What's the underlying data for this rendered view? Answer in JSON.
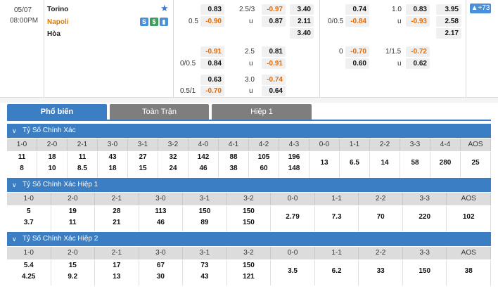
{
  "match": {
    "date": "05/07",
    "time": "08:00PM",
    "home": "Torino",
    "away": "Napoli",
    "draw": "Hòa",
    "more": "+73"
  },
  "icons": [
    "stats-s-icon",
    "money-icon",
    "chart-icon",
    "star-icon"
  ],
  "odds_ft": {
    "row1": {
      "hdp_home": "0.83",
      "line": "2.5/3",
      "hdp_away": "-0.97",
      "x12": "3.40"
    },
    "row2": {
      "line": "0.5",
      "hdp_home": "-0.90",
      "u": "u",
      "ou": "0.87",
      "x12": "2.11"
    },
    "row3": {
      "x12": "3.40"
    },
    "row4": {
      "hdp_home": "-0.91",
      "line": "2.5",
      "ou": "0.81"
    },
    "row5": {
      "line": "0/0.5",
      "hdp_home": "0.84",
      "u": "u",
      "ou": "-0.91"
    },
    "row6": {
      "hdp_home": "0.63",
      "line": "3.0",
      "ou": "-0.74"
    },
    "row7": {
      "line": "0.5/1",
      "hdp_home": "-0.70",
      "u": "u",
      "ou": "0.64"
    }
  },
  "odds_h1": {
    "row1": {
      "hdp_home": "0.74",
      "line": "1.0",
      "ou": "0.83",
      "x12": "3.95"
    },
    "row2": {
      "line": "0/0.5",
      "hdp_home": "-0.84",
      "u": "u",
      "ou": "-0.93",
      "x12": "2.58"
    },
    "row3": {
      "x12": "2.17"
    },
    "row4": {
      "line0": "0",
      "hdp_home": "-0.70",
      "line": "1/1.5",
      "ou": "-0.72"
    },
    "row5": {
      "hdp_home": "0.60",
      "u": "u",
      "ou": "0.62"
    }
  },
  "tabs": [
    {
      "label": "Phổ biến"
    },
    {
      "label": "Toàn Trận"
    },
    {
      "label": "Hiệp 1"
    }
  ],
  "sections": [
    {
      "title": "Tỷ Số Chính Xác",
      "scores": [
        "1-0",
        "2-0",
        "2-1",
        "3-0",
        "3-1",
        "3-2",
        "4-0",
        "4-1",
        "4-2",
        "4-3",
        "0-0",
        "1-1",
        "2-2",
        "3-3",
        "4-4",
        "AOS"
      ],
      "home": [
        "11",
        "18",
        "11",
        "43",
        "27",
        "32",
        "142",
        "88",
        "105",
        "196"
      ],
      "away": [
        "8",
        "10",
        "8.5",
        "18",
        "15",
        "24",
        "46",
        "38",
        "60",
        "148"
      ],
      "single": [
        "13",
        "6.5",
        "14",
        "58",
        "280",
        "25"
      ]
    },
    {
      "title": "Tỷ Số Chính Xác Hiệp 1",
      "scores": [
        "1-0",
        "2-0",
        "2-1",
        "3-0",
        "3-1",
        "3-2",
        "0-0",
        "1-1",
        "2-2",
        "3-3",
        "AOS"
      ],
      "home": [
        "5",
        "19",
        "28",
        "113",
        "150",
        "150"
      ],
      "away": [
        "3.7",
        "11",
        "21",
        "46",
        "89",
        "150"
      ],
      "single": [
        "2.79",
        "7.3",
        "70",
        "220",
        "102"
      ]
    },
    {
      "title": "Tỷ Số Chính Xác Hiệp 2",
      "scores": [
        "1-0",
        "2-0",
        "2-1",
        "3-0",
        "3-1",
        "3-2",
        "0-0",
        "1-1",
        "2-2",
        "3-3",
        "AOS"
      ],
      "home": [
        "5.4",
        "15",
        "17",
        "67",
        "73",
        "150"
      ],
      "away": [
        "4.25",
        "9.2",
        "13",
        "30",
        "43",
        "121"
      ],
      "single": [
        "3.5",
        "6.2",
        "33",
        "150",
        "38"
      ]
    }
  ]
}
